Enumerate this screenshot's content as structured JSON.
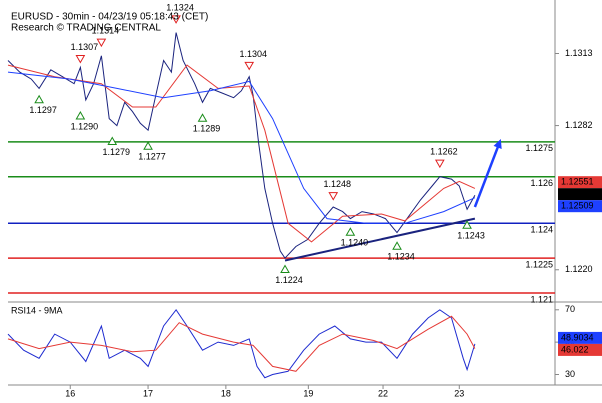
{
  "chart_data": [
    {
      "type": "line",
      "title": "EURUSD - 30min - 04/23/19 05:18:43 (CET)",
      "subtitle": "Research © TRADING CENTRAL",
      "xlim": [
        0.2,
        7.23
      ],
      "ylim": [
        1.1207,
        1.1336
      ],
      "yticks": [
        1.1313,
        1.1282,
        {
          "value": 1.122,
          "label": "1.1220"
        }
      ],
      "series": [
        {
          "color": "#1a237e",
          "x": [
            0.2,
            0.35,
            0.5,
            0.6,
            0.75,
            0.9,
            1.05,
            1.13,
            1.2,
            1.3,
            1.4,
            1.5,
            1.6,
            1.7,
            1.8,
            1.9,
            2.0,
            2.1,
            2.2,
            2.3,
            2.36,
            2.45,
            2.6,
            2.7,
            2.8,
            2.95,
            3.1,
            3.2,
            3.3,
            3.35,
            3.42,
            3.5,
            3.6,
            3.7,
            3.76,
            3.9,
            4.05,
            4.2,
            4.38,
            4.5,
            4.6,
            4.75,
            4.9,
            5.05,
            5.2,
            5.35,
            5.5,
            5.65,
            5.75,
            5.9,
            6.0,
            6.1,
            6.2
          ],
          "values": [
            1.131,
            1.1305,
            1.1302,
            1.1298,
            1.1306,
            1.1303,
            1.13,
            1.1307,
            1.1293,
            1.13,
            1.1312,
            1.1285,
            1.1282,
            1.1292,
            1.1288,
            1.1283,
            1.128,
            1.1295,
            1.131,
            1.1305,
            1.1322,
            1.131,
            1.13,
            1.1292,
            1.1298,
            1.1296,
            1.1294,
            1.1297,
            1.1303,
            1.1295,
            1.1275,
            1.1255,
            1.124,
            1.1228,
            1.1225,
            1.123,
            1.1233,
            1.124,
            1.1247,
            1.1245,
            1.1242,
            1.1245,
            1.1244,
            1.1242,
            1.1236,
            1.1243,
            1.125,
            1.1256,
            1.126,
            1.1259,
            1.1256,
            1.1246,
            1.1252
          ]
        },
        {
          "color": "#e53935",
          "x": [
            0.2,
            0.8,
            1.4,
            1.8,
            2.1,
            2.5,
            2.9,
            3.3,
            3.5,
            3.8,
            4.1,
            4.5,
            5.0,
            5.3,
            5.8,
            6.0,
            6.2
          ],
          "values": [
            1.1308,
            1.1303,
            1.13,
            1.129,
            1.129,
            1.1308,
            1.1298,
            1.1299,
            1.128,
            1.124,
            1.1232,
            1.1243,
            1.1244,
            1.1241,
            1.1255,
            1.1258,
            1.1255
          ]
        },
        {
          "color": "#1e40ff",
          "x": [
            0.2,
            1.0,
            1.6,
            2.2,
            2.8,
            3.3,
            3.6,
            4.0,
            4.3,
            4.8,
            5.3,
            5.8,
            6.2
          ],
          "values": [
            1.1305,
            1.1302,
            1.1298,
            1.1294,
            1.1297,
            1.1301,
            1.1285,
            1.1255,
            1.1242,
            1.124,
            1.124,
            1.1245,
            1.1251
          ]
        }
      ],
      "levels": [
        {
          "value": 1.1275,
          "color": "#1a8c1a"
        },
        {
          "value": 1.126,
          "color": "#1a8c1a"
        },
        {
          "value": 1.124,
          "color": "#1020c0"
        },
        {
          "value": 1.1225,
          "color": "#e02020"
        },
        {
          "value": 1.121,
          "color": "#e02020"
        }
      ],
      "annotations": [
        {
          "x": 2.36,
          "value": 1.1324,
          "marker": "high"
        },
        {
          "x": 1.13,
          "value": 1.1307,
          "marker": "high"
        },
        {
          "x": 1.4,
          "value": 1.1314,
          "marker": "high"
        },
        {
          "x": 0.6,
          "value": 1.1297,
          "marker": "low"
        },
        {
          "x": 1.13,
          "value": 1.129,
          "label": "1.1290",
          "marker": "low"
        },
        {
          "x": 1.54,
          "value": 1.1279,
          "marker": "low"
        },
        {
          "x": 2.0,
          "value": 1.1277,
          "marker": "low"
        },
        {
          "x": 3.3,
          "value": 1.1304,
          "marker": "high"
        },
        {
          "x": 2.7,
          "value": 1.1289,
          "marker": "low"
        },
        {
          "x": 3.76,
          "value": 1.1224,
          "marker": "low"
        },
        {
          "x": 4.38,
          "value": 1.1248,
          "marker": "high"
        },
        {
          "x": 4.6,
          "value": 1.124,
          "label": "1.1240",
          "marker": "low"
        },
        {
          "x": 5.2,
          "value": 1.1234,
          "marker": "low"
        },
        {
          "x": 5.75,
          "value": 1.1262,
          "marker": "high"
        },
        {
          "x": 6.1,
          "value": 1.1243,
          "marker": "low"
        }
      ],
      "trendline": {
        "x": [
          3.76,
          6.2
        ],
        "values": [
          1.1224,
          1.1242
        ]
      },
      "arrow": {
        "x": [
          6.2,
          6.52
        ],
        "values": [
          1.1247,
          1.1275
        ]
      },
      "last_values": [
        {
          "value": 1.12551,
          "color": "#e53935"
        },
        {
          "value": 1.12525,
          "color": "#000000"
        },
        {
          "value": 1.12509,
          "color": "#1e40ff"
        }
      ]
    },
    {
      "type": "line",
      "title": "RSI14 - 9MA",
      "xlim": [
        0.2,
        7.23
      ],
      "ylim": [
        23.5,
        74.2
      ],
      "yticks": [
        70,
        50,
        30
      ],
      "xticks": [
        {
          "value": 1,
          "label": "16"
        },
        {
          "value": 2,
          "label": "17"
        },
        {
          "value": 3,
          "label": "18"
        },
        {
          "value": 4.06,
          "label": "19"
        },
        {
          "value": 5.02,
          "label": "22"
        },
        {
          "value": 6.0,
          "label": "23"
        }
      ],
      "series": [
        {
          "color": "#1e2bd0",
          "x": [
            0.2,
            0.4,
            0.6,
            0.8,
            1.0,
            1.2,
            1.4,
            1.5,
            1.7,
            1.9,
            2.0,
            2.2,
            2.36,
            2.5,
            2.7,
            2.9,
            3.1,
            3.3,
            3.4,
            3.5,
            3.6,
            3.8,
            4.0,
            4.2,
            4.4,
            4.6,
            4.8,
            5.0,
            5.2,
            5.4,
            5.6,
            5.75,
            5.9,
            6.05,
            6.1,
            6.2
          ],
          "values": [
            55,
            45,
            40,
            55,
            50,
            38,
            60,
            40,
            45,
            40,
            35,
            60,
            70,
            60,
            45,
            50,
            48,
            52,
            35,
            28,
            30,
            32,
            45,
            55,
            60,
            52,
            50,
            50,
            40,
            55,
            65,
            70,
            65,
            40,
            33,
            48.9034
          ]
        },
        {
          "color": "#e53935",
          "x": [
            0.2,
            0.6,
            1.0,
            1.4,
            1.8,
            2.1,
            2.4,
            2.7,
            3.1,
            3.35,
            3.6,
            3.9,
            4.2,
            4.5,
            4.9,
            5.2,
            5.6,
            5.9,
            6.1,
            6.2
          ],
          "values": [
            52,
            46,
            50,
            48,
            44,
            45,
            62,
            55,
            50,
            48,
            35,
            32,
            48,
            55,
            51,
            46,
            58,
            66,
            55,
            46.022
          ]
        }
      ],
      "last_values": [
        {
          "value": 48.9034,
          "color": "#1e40ff"
        },
        {
          "value": 46.022,
          "color": "#e53935"
        }
      ]
    }
  ]
}
